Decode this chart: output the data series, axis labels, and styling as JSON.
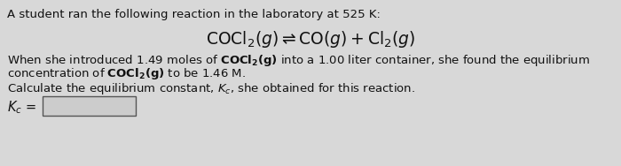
{
  "bg_color": "#d8d8d8",
  "text_color": "#111111",
  "line1": "A student ran the following reaction in the laboratory at 525 K:",
  "body_fontsize": 9.5,
  "reaction_fontsize": 13.5,
  "kc_label_fontsize": 10.5,
  "box_facecolor": "#cccccc",
  "box_edgecolor": "#555555"
}
